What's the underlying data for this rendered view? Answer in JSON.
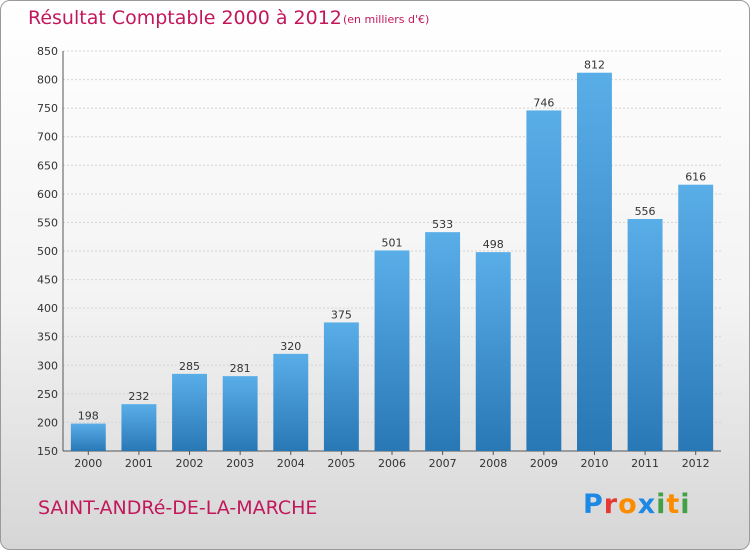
{
  "header": {
    "title": "Résultat Comptable 2000 à 2012",
    "subtitle": "(en milliers d'€)"
  },
  "footer": {
    "town": "SAINT-ANDRé-DE-LA-MARCHE",
    "logo_text": "Proxiti",
    "logo_letters": [
      {
        "ch": "P",
        "color": "#1e88e5"
      },
      {
        "ch": "r",
        "color": "#e53935"
      },
      {
        "ch": "o",
        "color": "#fb8c00"
      },
      {
        "ch": "x",
        "color": "#1e88e5"
      },
      {
        "ch": "i",
        "color": "#43a047"
      },
      {
        "ch": "t",
        "color": "#fb8c00"
      },
      {
        "ch": "i",
        "color": "#43a047"
      }
    ]
  },
  "colors": {
    "accent": "#c2185b",
    "bar_top": "#5aaee8",
    "bar_bottom": "#2878b6"
  },
  "chart_data": {
    "type": "bar",
    "title": "Résultat Comptable 2000 à 2012",
    "subtitle": "(en milliers d'€)",
    "categories": [
      "2000",
      "2001",
      "2002",
      "2003",
      "2004",
      "2005",
      "2006",
      "2007",
      "2008",
      "2009",
      "2010",
      "2011",
      "2012"
    ],
    "values": [
      198,
      232,
      285,
      281,
      320,
      375,
      501,
      533,
      498,
      746,
      812,
      556,
      616
    ],
    "ylim": [
      150,
      850
    ],
    "yticks": [
      150,
      200,
      250,
      300,
      350,
      400,
      450,
      500,
      550,
      600,
      650,
      700,
      750,
      800,
      850
    ],
    "grid": true,
    "data_labels": true
  }
}
